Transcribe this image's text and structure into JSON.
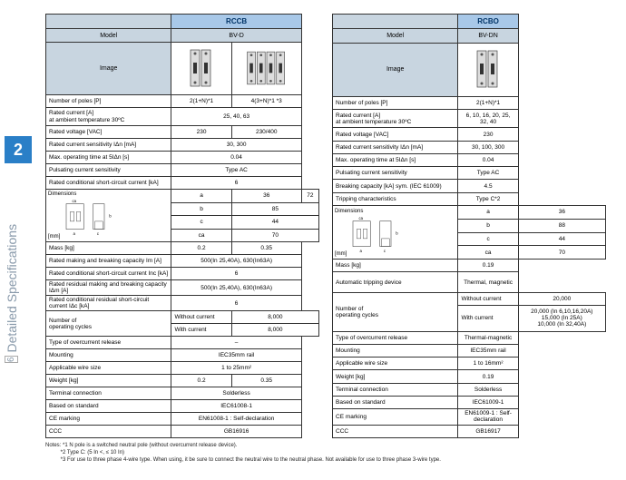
{
  "sidebar": {
    "number": "2",
    "label": "Detailed Specifications",
    "icon_num": "6"
  },
  "left": {
    "title": "RCCB",
    "model_label": "Model",
    "model_value": "BV-D",
    "image_label": "Image",
    "rows": [
      {
        "label": "Number of poles [P]",
        "v1": "2(1+N)*1",
        "v2": "4(3+N)*1 *3"
      },
      {
        "label": "Rated current [A]\nat ambient temperature 30ºC",
        "span": "25, 40, 63"
      },
      {
        "label": "Rated voltage [VAC]",
        "v1": "230",
        "v2": "230/400"
      },
      {
        "label": "Rated current sensitivity IΔn [mA]",
        "span": "30, 300"
      },
      {
        "label": "Max. operating time at 5IΔn [s]",
        "span": "0.04"
      },
      {
        "label": "Pulsating current sensitivity",
        "span": "Type AC"
      },
      {
        "label": "Rated conditional short-circuit current [kA]",
        "span": "6"
      }
    ],
    "dim_label": "Dimensions\n[mm]",
    "dims": [
      {
        "k": "a",
        "v1": "36",
        "v2": "72"
      },
      {
        "k": "b",
        "span": "85"
      },
      {
        "k": "c",
        "span": "44"
      },
      {
        "k": "ca",
        "span": "70"
      }
    ],
    "rows2": [
      {
        "label": "Mass [kg]",
        "v1": "0.2",
        "v2": "0.35"
      },
      {
        "label": "Rated making and breaking capacity Im [A]",
        "span": "500(In 25,40A), 630(In63A)"
      },
      {
        "label": "Rated conditional short-circuit current Inc [kA]",
        "span": "6"
      },
      {
        "label": "Rated residual making and breaking capacity IΔm [A]",
        "span": "500(In 25,40A), 630(In63A)"
      },
      {
        "label": "Rated conditional residual short-circuit current IΔc [kA]",
        "span": "6"
      }
    ],
    "cycles_label": "Number of\noperating cycles",
    "cycles": [
      {
        "k": "Without current",
        "span": "8,000"
      },
      {
        "k": "With current",
        "span": "8,000"
      }
    ],
    "rows3": [
      {
        "label": "Type of overcurrent release",
        "span": "–"
      },
      {
        "label": "Mounting",
        "span": "IEC35mm rail"
      },
      {
        "label": "Applicable wire size",
        "span": "1 to 25mm²"
      },
      {
        "label": "Weight [kg]",
        "v1": "0.2",
        "v2": "0.35"
      },
      {
        "label": "Terminal connection",
        "span": "Solderless"
      },
      {
        "label": "Based on standard",
        "span": "IEC61008-1"
      },
      {
        "label": "CE marking",
        "span": "EN61008-1 : Self-declaration"
      },
      {
        "label": "CCC",
        "span": "GB16916"
      }
    ]
  },
  "right": {
    "title": "RCBO",
    "model_label": "Model",
    "model_value": "BV-DN",
    "image_label": "Image",
    "rows": [
      {
        "label": "Number of poles [P]",
        "span": "2(1+N)*1"
      },
      {
        "label": "Rated current [A]\nat ambient temperature 30ºC",
        "span": "6, 10, 16, 20, 25, 32, 40"
      },
      {
        "label": "Rated voltage [VAC]",
        "span": "230"
      },
      {
        "label": "Rated current sensitivity IΔn [mA]",
        "span": "30, 100, 300"
      },
      {
        "label": "Max. operating time at 5IΔn [s]",
        "span": "0.04"
      },
      {
        "label": "Pulsating current sensitivity",
        "span": "Type AC"
      },
      {
        "label": "Breaking capacity [kA] sym. (IEC 61009)",
        "span": "4.5"
      },
      {
        "label": "Tripping characteristics",
        "span": "Type C*2"
      }
    ],
    "dim_label": "Dimensions\n[mm]",
    "dims": [
      {
        "k": "a",
        "span": "36"
      },
      {
        "k": "b",
        "span": "88"
      },
      {
        "k": "c",
        "span": "44"
      },
      {
        "k": "ca",
        "span": "70"
      }
    ],
    "rows2": [
      {
        "label": "Mass [kg]",
        "span": "0.19"
      },
      {
        "label": "Automatic tripping device",
        "span": "Thermal, magnetic",
        "tall": true
      }
    ],
    "cycles_label": "Number of\noperating cycles",
    "cycles": [
      {
        "k": "Without current",
        "span": "20,000"
      },
      {
        "k": "With current",
        "span": "20,000 (In 6,10,16,20A)\n15,000 (In 25A)\n10,000 (In 32,40A)",
        "tall": true
      }
    ],
    "rows3": [
      {
        "label": "Type of overcurrent release",
        "span": "Thermal-magnetic"
      },
      {
        "label": "Mounting",
        "span": "IEC35mm rail"
      },
      {
        "label": "Applicable wire size",
        "span": "1 to 16mm²"
      },
      {
        "label": "Weight [kg]",
        "span": "0.19"
      },
      {
        "label": "Terminal connection",
        "span": "Solderless"
      },
      {
        "label": "Based on standard",
        "span": "IEC61009-1"
      },
      {
        "label": "CE marking",
        "span": "EN61009-1 : Self-declaration"
      },
      {
        "label": "CCC",
        "span": "GB16917"
      }
    ]
  },
  "notes_label": "Notes:",
  "notes": [
    "*1  N pole is a switched neutral pole (without overcurrent release device).",
    "*2  Type C: (5 In <, ≤ 10 In)",
    "*3  For use to three phase 4-wire type. When using, it be sure to connect the neutral wire to the neutral phase. Not available for use to three phase 3-wire type."
  ]
}
